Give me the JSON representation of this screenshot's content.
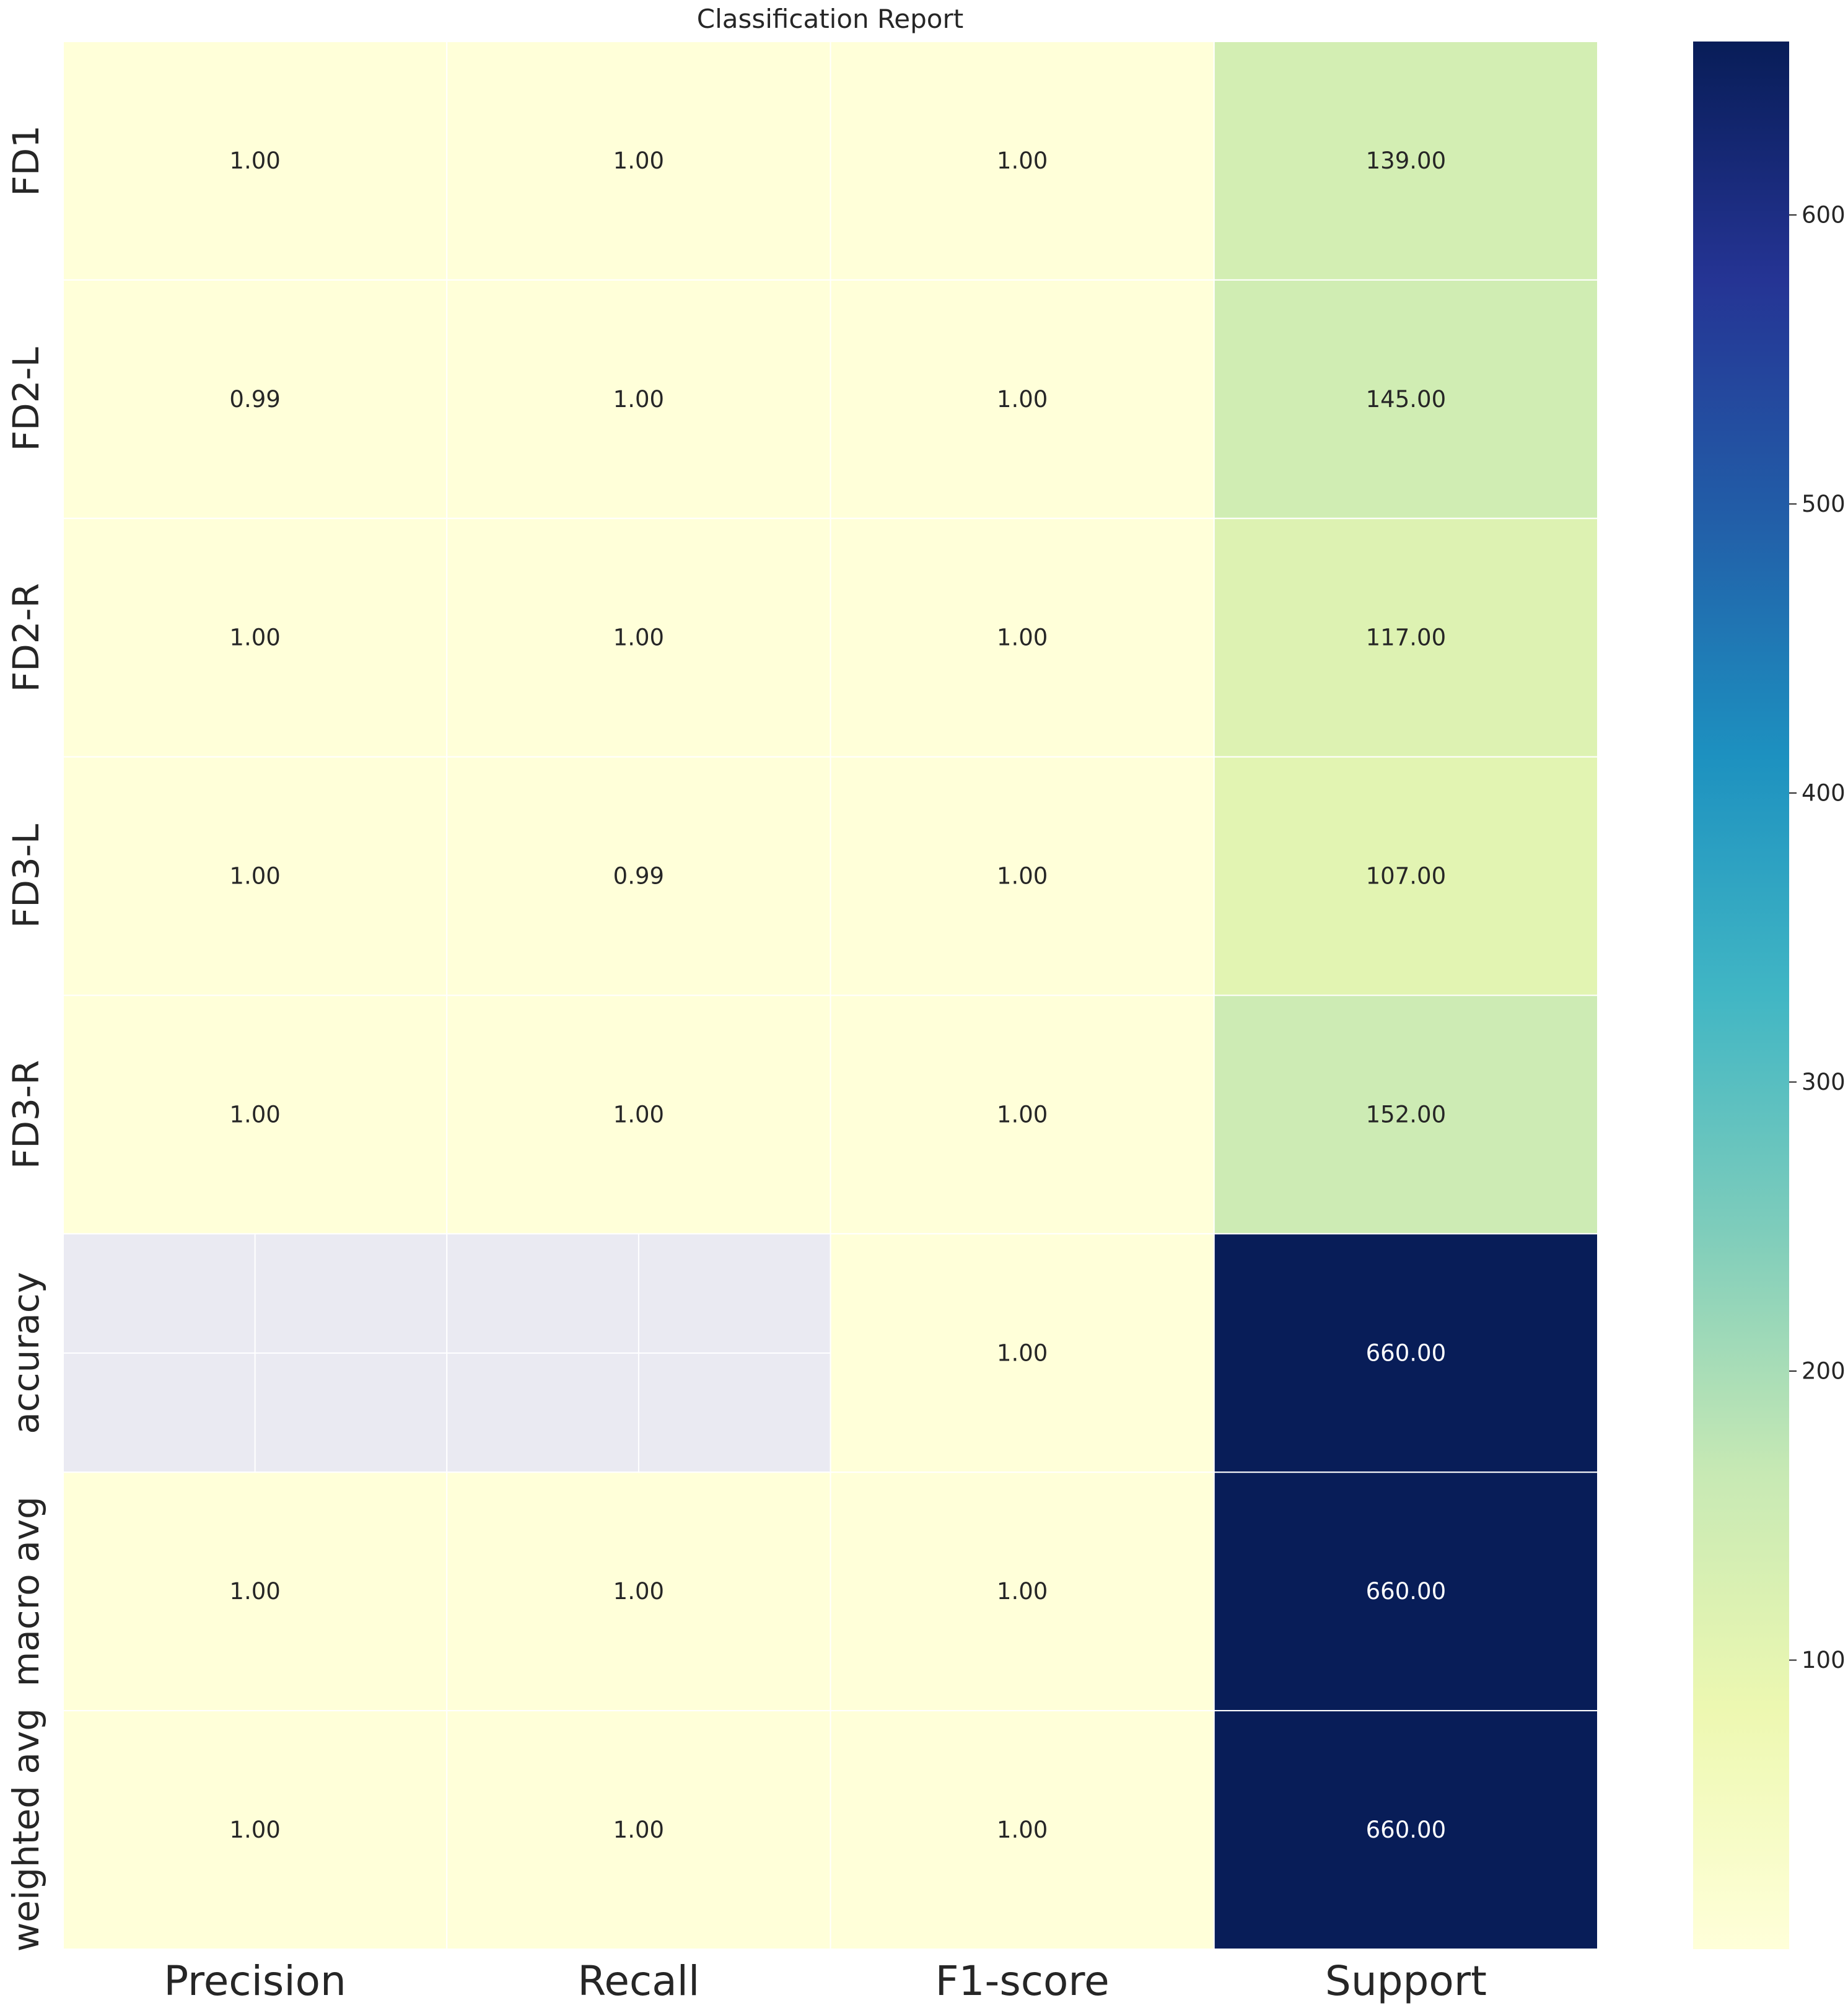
{
  "chart_data": {
    "type": "heatmap",
    "title": "Classification Report",
    "columns": [
      "Precision",
      "Recall",
      "F1-score",
      "Support"
    ],
    "rows": [
      "FD1",
      "FD2-L",
      "FD2-R",
      "FD3-L",
      "FD3-R",
      "accuracy",
      "macro avg",
      "weighted avg"
    ],
    "values": [
      [
        1.0,
        1.0,
        1.0,
        139.0
      ],
      [
        0.99,
        1.0,
        1.0,
        145.0
      ],
      [
        1.0,
        1.0,
        1.0,
        117.0
      ],
      [
        1.0,
        0.99,
        1.0,
        107.0
      ],
      [
        1.0,
        1.0,
        1.0,
        152.0
      ],
      [
        null,
        null,
        1.0,
        660.0
      ],
      [
        1.0,
        1.0,
        1.0,
        660.0
      ],
      [
        1.0,
        1.0,
        1.0,
        660.0
      ]
    ],
    "value_format": "0.00",
    "colormap": "YlGnBu",
    "vmin": 0,
    "vmax": 660,
    "colorbar": {
      "ticks": [
        100,
        200,
        300,
        400,
        500,
        600
      ],
      "position": "right"
    },
    "missing_color": "#eaeaf2",
    "grid": true
  }
}
